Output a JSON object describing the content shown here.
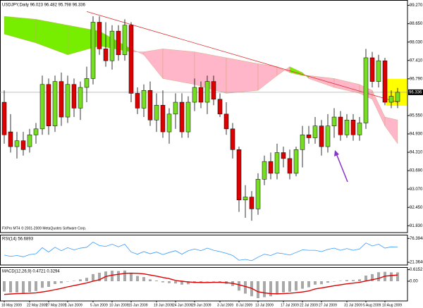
{
  "chart_data": [
    {
      "type": "candlestick",
      "title": "USDJPY,Daily 96.023 96.482 95.798 96.336",
      "watermark": "FXPro MT4 © 2001-2009 MetaQuotes Software Corp.",
      "x": [
        "2009-05-18",
        "2009-05-19",
        "2009-05-20",
        "2009-05-21",
        "2009-05-22",
        "2009-05-25",
        "2009-05-26",
        "2009-05-27",
        "2009-05-28",
        "2009-05-29",
        "2009-06-01",
        "2009-06-02",
        "2009-06-03",
        "2009-06-04",
        "2009-06-05",
        "2009-06-08",
        "2009-06-09",
        "2009-06-10",
        "2009-06-11",
        "2009-06-12",
        "2009-06-15",
        "2009-06-16",
        "2009-06-17",
        "2009-06-18",
        "2009-06-19",
        "2009-06-22",
        "2009-06-23",
        "2009-06-24",
        "2009-06-25",
        "2009-06-26",
        "2009-06-29",
        "2009-06-30",
        "2009-07-01",
        "2009-07-02",
        "2009-07-03",
        "2009-07-06",
        "2009-07-07",
        "2009-07-08",
        "2009-07-09",
        "2009-07-10",
        "2009-07-13",
        "2009-07-14",
        "2009-07-15",
        "2009-07-16",
        "2009-07-17",
        "2009-07-20",
        "2009-07-21",
        "2009-07-22",
        "2009-07-23",
        "2009-07-24",
        "2009-07-27",
        "2009-07-28",
        "2009-07-29",
        "2009-07-30",
        "2009-07-31",
        "2009-08-03",
        "2009-08-04",
        "2009-08-05",
        "2009-08-06",
        "2009-08-07",
        "2009-08-10",
        "2009-08-11",
        "2009-08-12"
      ],
      "open": [
        96.0,
        95.0,
        94.5,
        94.7,
        94.5,
        94.9,
        95.1,
        96.6,
        95.2,
        96.7,
        95.5,
        96.6,
        95.8,
        96.5,
        96.8,
        98.7,
        97.8,
        97.4,
        98.4,
        97.6,
        98.6,
        96.3,
        95.8,
        96.4,
        95.4,
        95.9,
        95.0,
        95.6,
        96.0,
        95.0,
        96.0,
        96.5,
        96.0,
        96.7,
        96.1,
        95.6,
        95.1,
        94.4,
        92.7,
        92.8,
        92.4,
        93.4,
        94.0,
        93.6,
        94.3,
        94.1,
        93.6,
        94.4,
        94.9,
        94.8,
        95.2,
        94.5,
        95.2,
        95.5,
        94.9,
        95.4,
        94.9,
        95.3,
        97.5,
        96.7,
        97.4,
        96.0,
        96.023
      ],
      "high": [
        96.4,
        95.6,
        95.0,
        95.0,
        95.1,
        95.3,
        96.9,
        96.8,
        96.9,
        97.0,
        96.9,
        96.8,
        96.7,
        97.2,
        98.9,
        98.9,
        98.7,
        98.6,
        98.6,
        98.8,
        98.7,
        96.5,
        96.6,
        96.7,
        96.3,
        96.4,
        95.8,
        96.3,
        96.3,
        96.2,
        96.8,
        96.7,
        96.9,
        96.9,
        96.3,
        96.0,
        95.3,
        94.5,
        93.2,
        93.0,
        93.6,
        94.2,
        94.3,
        94.6,
        94.5,
        94.4,
        94.5,
        95.2,
        95.2,
        95.5,
        95.4,
        95.6,
        95.8,
        95.7,
        95.6,
        95.6,
        95.5,
        97.8,
        97.7,
        97.6,
        97.5,
        96.4,
        96.482
      ],
      "low": [
        94.6,
        94.3,
        94.1,
        94.2,
        94.3,
        94.6,
        94.9,
        94.9,
        95.0,
        95.2,
        95.3,
        95.5,
        95.4,
        96.0,
        96.6,
        97.6,
        97.2,
        97.1,
        97.4,
        97.4,
        96.0,
        95.6,
        95.5,
        95.2,
        95.0,
        94.8,
        94.6,
        95.1,
        94.8,
        94.8,
        95.7,
        95.8,
        95.6,
        95.9,
        95.5,
        94.9,
        94.1,
        92.3,
        92.1,
        92.0,
        92.2,
        93.2,
        93.4,
        93.4,
        93.8,
        93.4,
        93.5,
        93.8,
        94.6,
        94.6,
        94.2,
        94.3,
        94.8,
        94.7,
        94.8,
        94.7,
        94.7,
        95.1,
        96.5,
        96.5,
        95.9,
        95.8,
        95.798
      ],
      "close": [
        94.9,
        94.5,
        94.7,
        94.4,
        94.9,
        95.1,
        96.6,
        95.2,
        96.7,
        95.5,
        96.6,
        95.8,
        96.5,
        96.8,
        98.7,
        97.8,
        97.4,
        98.4,
        97.6,
        98.6,
        96.3,
        95.8,
        96.4,
        95.4,
        95.9,
        95.0,
        95.6,
        96.0,
        95.0,
        96.0,
        96.5,
        96.0,
        96.7,
        96.1,
        95.6,
        95.1,
        94.4,
        92.7,
        92.8,
        92.4,
        93.4,
        94.0,
        93.6,
        94.3,
        94.1,
        93.6,
        94.4,
        94.9,
        94.8,
        95.2,
        94.5,
        95.2,
        95.5,
        94.9,
        95.4,
        94.9,
        95.3,
        97.5,
        96.7,
        97.4,
        96.0,
        96.2,
        96.336
      ],
      "up_color": "#77dd22",
      "down_color": "#dd0000",
      "cloud": {
        "x": [
          "2009-05-18",
          "2009-05-25",
          "2009-06-01",
          "2009-06-08",
          "2009-06-15",
          "2009-06-17",
          "2009-06-22",
          "2009-06-29",
          "2009-07-06",
          "2009-07-13",
          "2009-07-16",
          "2009-07-20",
          "2009-07-22",
          "2009-07-23",
          "2009-07-29",
          "2009-08-04",
          "2009-08-06",
          "2009-08-10",
          "2009-08-12"
        ],
        "span_a": [
          98.9,
          98.8,
          98.6,
          98.4,
          97.8,
          97.6,
          96.8,
          96.6,
          96.3,
          96.4,
          96.9,
          97.2,
          97.0,
          96.8,
          96.5,
          96.3,
          96.1,
          95.2,
          94.6
        ],
        "span_b": [
          98.3,
          98.0,
          97.6,
          97.9,
          97.7,
          97.7,
          97.8,
          97.7,
          97.5,
          97.3,
          97.2,
          97.0,
          96.9,
          96.9,
          96.8,
          96.6,
          96.4,
          95.5,
          95.4
        ],
        "up_color": "#77ee00",
        "down_color": "#ffb6c8"
      },
      "trendline": {
        "x": [
          "2009-06-04",
          "2009-08-12"
        ],
        "values": [
          99.06,
          96.0
        ],
        "color": "#dd3333"
      },
      "ylim": [
        91.6,
        99.45
      ],
      "yticks": [
        {
          "value": 99.27,
          "label": "99.270"
        },
        {
          "value": 98.65,
          "label": "98.650"
        },
        {
          "value": 98.03,
          "label": "98.030"
        },
        {
          "value": 97.41,
          "label": "97.410"
        },
        {
          "value": 96.79,
          "label": "96.790"
        },
        {
          "value": 95.55,
          "label": "95.550"
        },
        {
          "value": 94.93,
          "label": "94.930"
        },
        {
          "value": 94.31,
          "label": "94.310"
        },
        {
          "value": 93.69,
          "label": "93.690"
        },
        {
          "value": 93.07,
          "label": "93.070"
        },
        {
          "value": 92.45,
          "label": "92.450"
        },
        {
          "value": 91.83,
          "label": "91.830"
        }
      ],
      "xticks": [
        {
          "value": "2009-05-18",
          "label": "18 May 2009"
        },
        {
          "value": "2009-05-22",
          "label": "22 May 2009"
        },
        {
          "value": "2009-05-27",
          "label": "27 May 2009"
        },
        {
          "value": "2009-06-01",
          "label": "1 Jun 2009"
        },
        {
          "value": "2009-06-05",
          "label": "5 Jun 2009"
        },
        {
          "value": "2009-06-10",
          "label": "10 Jun 2009"
        },
        {
          "value": "2009-06-15",
          "label": "15 Jun 2009"
        },
        {
          "value": "2009-06-19",
          "label": "19 Jun 2009"
        },
        {
          "value": "2009-06-24",
          "label": "24 Jun 2009"
        },
        {
          "value": "2009-06-29",
          "label": "29 Jun 2009"
        },
        {
          "value": "2009-07-03",
          "label": "3 Jul 2009"
        },
        {
          "value": "2009-07-08",
          "label": "8 Jul 2009"
        },
        {
          "value": "2009-07-13",
          "label": "13 Jul 2009"
        },
        {
          "value": "2009-07-17",
          "label": "17 Jul 2009"
        },
        {
          "value": "2009-07-22",
          "label": "22 Jul 2009"
        },
        {
          "value": "2009-07-27",
          "label": "27 Jul 2009"
        },
        {
          "value": "2009-07-31",
          "label": "31 Jul 2009"
        },
        {
          "value": "2009-08-05",
          "label": "5 Aug 2009"
        },
        {
          "value": "2009-08-10",
          "label": "10 Aug 2009"
        }
      ]
    },
    {
      "type": "line",
      "title": "RSI(14) 56.6893",
      "values": [
        38,
        35,
        37,
        34,
        39,
        41,
        55,
        45,
        56,
        48,
        55,
        50,
        54,
        56,
        68,
        60,
        58,
        63,
        57,
        63,
        45,
        40,
        46,
        41,
        45,
        39,
        44,
        48,
        40,
        48,
        52,
        48,
        54,
        49,
        46,
        42,
        37,
        26,
        28,
        25,
        33,
        40,
        37,
        43,
        41,
        38,
        44,
        50,
        49,
        49,
        46,
        51,
        54,
        49,
        53,
        49,
        52,
        66,
        59,
        63,
        54,
        57,
        56.6893
      ],
      "color": "#3399ff",
      "ylim": [
        15,
        85
      ],
      "yticks": [
        76.3948,
        21.3646
      ]
    },
    {
      "type": "bar",
      "title": "MACD(12,26,9) 0.4721 0.3294",
      "series": [
        {
          "type": "bar",
          "color": "#a8a8a8",
          "values": [
            -0.55,
            -0.6,
            -0.6,
            -0.62,
            -0.58,
            -0.52,
            -0.35,
            -0.3,
            -0.15,
            -0.1,
            0.0,
            0.02,
            0.1,
            0.18,
            0.38,
            0.45,
            0.52,
            0.56,
            0.54,
            0.57,
            0.42,
            0.28,
            0.22,
            0.1,
            0.04,
            -0.06,
            -0.1,
            -0.12,
            -0.18,
            -0.16,
            -0.1,
            -0.08,
            -0.02,
            -0.02,
            -0.06,
            -0.14,
            -0.25,
            -0.5,
            -0.66,
            -0.8,
            -0.9,
            -0.85,
            -0.8,
            -0.7,
            -0.6,
            -0.56,
            -0.5,
            -0.4,
            -0.32,
            -0.18,
            -0.16,
            -0.08,
            0.0,
            0.02,
            0.06,
            0.06,
            0.1,
            0.3,
            0.38,
            0.48,
            0.5,
            0.47,
            0.4721
          ]
        },
        {
          "type": "line",
          "color": "#dd0000",
          "values": [
            -0.7,
            -0.68,
            -0.66,
            -0.65,
            -0.64,
            -0.62,
            -0.57,
            -0.52,
            -0.45,
            -0.38,
            -0.3,
            -0.23,
            -0.16,
            -0.09,
            0.0,
            0.08,
            0.25,
            0.32,
            0.37,
            0.42,
            0.43,
            0.42,
            0.39,
            0.33,
            0.27,
            0.2,
            0.14,
            0.04,
            0.0,
            -0.04,
            -0.06,
            -0.07,
            -0.07,
            -0.06,
            -0.06,
            -0.08,
            -0.11,
            -0.19,
            -0.28,
            -0.38,
            -0.56,
            -0.62,
            -0.66,
            -0.67,
            -0.66,
            -0.64,
            -0.61,
            -0.57,
            -0.52,
            -0.41,
            -0.36,
            -0.3,
            -0.24,
            -0.19,
            -0.14,
            -0.1,
            -0.06,
            0.01,
            0.08,
            0.15,
            0.27,
            0.3,
            0.3294
          ]
        }
      ],
      "ylim": [
        -1.05,
        0.75
      ],
      "yticks": [
        0.6152,
        {
          "value": 0,
          "label": "0.00"
        }
      ]
    }
  ]
}
